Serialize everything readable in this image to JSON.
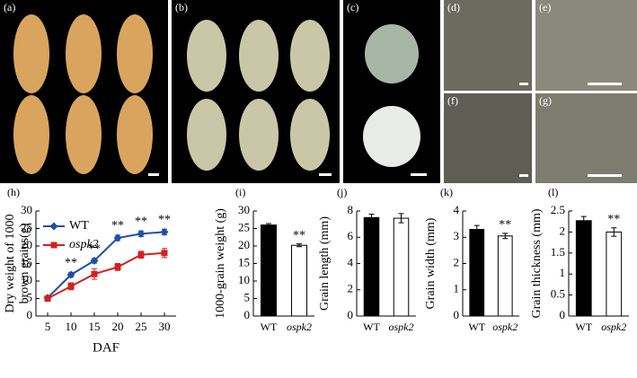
{
  "photo_panels": [
    "(a)",
    "(b)",
    "(c)",
    "(d)",
    "(e)",
    "(f)",
    "(g)"
  ],
  "chart_data": [
    {
      "type": "line",
      "panel_label": "(h)",
      "xlabel": "DAF",
      "ylabel": [
        "Dry weight of 1000",
        "brown grains(g)"
      ],
      "x": [
        5,
        10,
        15,
        20,
        25,
        30
      ],
      "xlim": [
        2.5,
        32.5
      ],
      "xticks": [
        5,
        10,
        15,
        20,
        25,
        30
      ],
      "ylim": [
        0,
        30
      ],
      "yticks": [
        0,
        5,
        10,
        15,
        20,
        25,
        30
      ],
      "series": [
        {
          "name": "WT",
          "color": "#1f4fa8",
          "marker": "diamond",
          "values": [
            5.2,
            11.8,
            15.8,
            22.3,
            23.5,
            24.0
          ],
          "errors": [
            0.3,
            0.7,
            0.7,
            0.8,
            0.8,
            0.8
          ]
        },
        {
          "name": "ospk2",
          "color": "#d42020",
          "marker": "square",
          "values": [
            5.0,
            8.5,
            12.0,
            14.0,
            17.5,
            18.0
          ],
          "errors": [
            0.3,
            1.0,
            1.5,
            1.0,
            1.0,
            1.3
          ]
        }
      ],
      "annotations": [
        {
          "x": 10,
          "text": "**"
        },
        {
          "x": 15,
          "text": "**"
        },
        {
          "x": 20,
          "text": "**"
        },
        {
          "x": 25,
          "text": "**"
        },
        {
          "x": 30,
          "text": "**"
        }
      ]
    },
    {
      "type": "bar",
      "panel_label": "(i)",
      "ylabel": "1000-grain weight (g)",
      "categories": [
        "WT",
        "ospk2"
      ],
      "values": [
        26.0,
        20.2
      ],
      "errors": [
        0.4,
        0.4
      ],
      "colors": [
        "#000000",
        "#ffffff"
      ],
      "ylim": [
        0,
        30
      ],
      "yticks": [
        0,
        5,
        10,
        15,
        20,
        25,
        30
      ],
      "annotations": [
        "",
        "**"
      ]
    },
    {
      "type": "bar",
      "panel_label": "(j)",
      "ylabel": "Grain length (mm)",
      "categories": [
        "WT",
        "ospk2"
      ],
      "values": [
        7.5,
        7.45
      ],
      "errors": [
        0.25,
        0.35
      ],
      "colors": [
        "#000000",
        "#ffffff"
      ],
      "ylim": [
        0,
        8
      ],
      "yticks": [
        0,
        2,
        4,
        6,
        8
      ]
    },
    {
      "type": "bar",
      "panel_label": "(k)",
      "ylabel": "Grain width (mm)",
      "categories": [
        "WT",
        "ospk2"
      ],
      "values": [
        3.3,
        3.05
      ],
      "errors": [
        0.15,
        0.1
      ],
      "colors": [
        "#000000",
        "#ffffff"
      ],
      "ylim": [
        0,
        4
      ],
      "yticks": [
        0,
        1,
        2,
        3,
        4
      ],
      "annotations": [
        "",
        "**"
      ]
    },
    {
      "type": "bar",
      "panel_label": "(l)",
      "ylabel": "Grain thickness (mm)",
      "categories": [
        "WT",
        "ospk2"
      ],
      "values": [
        2.27,
        2.0
      ],
      "errors": [
        0.1,
        0.1
      ],
      "colors": [
        "#000000",
        "#ffffff"
      ],
      "ylim": [
        0,
        2.5
      ],
      "yticks": [
        0,
        0.5,
        1,
        1.5,
        2,
        2.5
      ],
      "annotations": [
        "",
        "**"
      ]
    }
  ]
}
